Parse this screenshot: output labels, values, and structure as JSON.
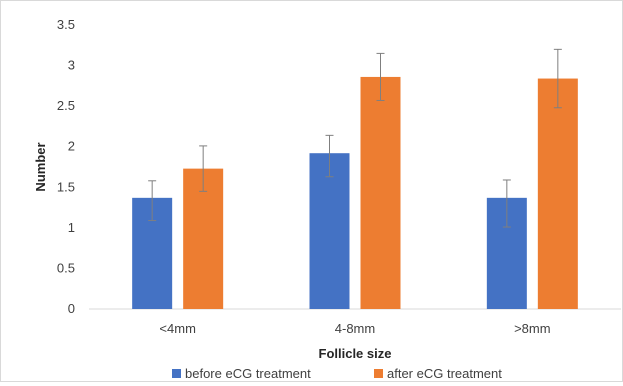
{
  "chart_data": {
    "type": "bar",
    "title": "",
    "xlabel": "Follicle size",
    "ylabel": "Number",
    "categories": [
      "<4mm",
      "4-8mm",
      ">8mm"
    ],
    "series": [
      {
        "name": "before eCG treatment",
        "color": "#4472C4",
        "values": [
          1.37,
          1.92,
          1.37
        ],
        "err_low": [
          1.09,
          1.63,
          1.01
        ],
        "err_high": [
          1.58,
          2.14,
          1.59
        ]
      },
      {
        "name": "after eCG treatment",
        "color": "#ED7D31",
        "values": [
          1.73,
          2.86,
          2.84
        ],
        "err_low": [
          1.45,
          2.57,
          2.48
        ],
        "err_high": [
          2.01,
          3.15,
          3.2
        ]
      }
    ],
    "ylim": [
      0,
      3.5
    ],
    "yticks": [
      "0",
      "0.5",
      "1",
      "1.5",
      "2",
      "2.5",
      "3",
      "3.5"
    ],
    "grid": false,
    "legend_position": "bottom"
  }
}
